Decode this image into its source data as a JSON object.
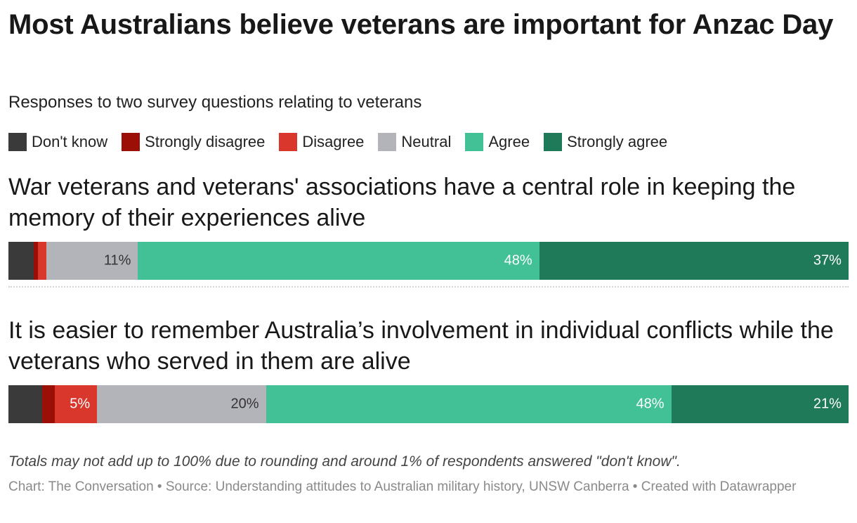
{
  "header": {
    "title": "Most Australians believe veterans are important for Anzac Day",
    "subtitle": "Responses to two survey questions relating to veterans"
  },
  "legend": [
    {
      "label": "Don't know",
      "color": "#3a3a3a"
    },
    {
      "label": "Strongly disagree",
      "color": "#9b0f06"
    },
    {
      "label": "Disagree",
      "color": "#d9362c"
    },
    {
      "label": "Neutral",
      "color": "#b3b3ba"
    },
    {
      "label": "Agree",
      "color": "#41c195"
    },
    {
      "label": "Strongly agree",
      "color": "#1f7a5a"
    }
  ],
  "chart_data": {
    "type": "bar",
    "orientation": "horizontal-stacked-100",
    "title": "Most Australians believe veterans are important for Anzac Day",
    "subtitle": "Responses to two survey questions relating to veterans",
    "categories": [
      "War veterans and veterans' associations have a central role in keeping the memory of their experiences alive",
      "It is easier to remember Australia’s involvement in individual conflicts while the veterans who served in them are alive"
    ],
    "series": [
      {
        "name": "Don't know",
        "values": [
          3,
          4
        ],
        "labels": [
          "",
          ""
        ]
      },
      {
        "name": "Strongly disagree",
        "values": [
          0.5,
          1.5
        ],
        "labels": [
          "",
          ""
        ]
      },
      {
        "name": "Disagree",
        "values": [
          1,
          5
        ],
        "labels": [
          "",
          "5%"
        ]
      },
      {
        "name": "Neutral",
        "values": [
          11,
          20
        ],
        "labels": [
          "11%",
          "20%"
        ]
      },
      {
        "name": "Agree",
        "values": [
          48,
          48
        ],
        "labels": [
          "48%",
          "48%"
        ]
      },
      {
        "name": "Strongly agree",
        "values": [
          37,
          21
        ],
        "labels": [
          "37%",
          "21%"
        ]
      }
    ],
    "label_colors": [
      "#ffffff",
      "#ffffff",
      "#ffffff",
      "#333333",
      "#ffffff",
      "#ffffff"
    ],
    "legend_position": "top",
    "grid": false
  },
  "footer": {
    "note": "Totals may not add up to 100% due to rounding and around 1% of respondents answered \"don't know\".",
    "source": "Chart: The Conversation • Source: Understanding attitudes to Australian military history, UNSW Canberra • Created with Datawrapper"
  }
}
